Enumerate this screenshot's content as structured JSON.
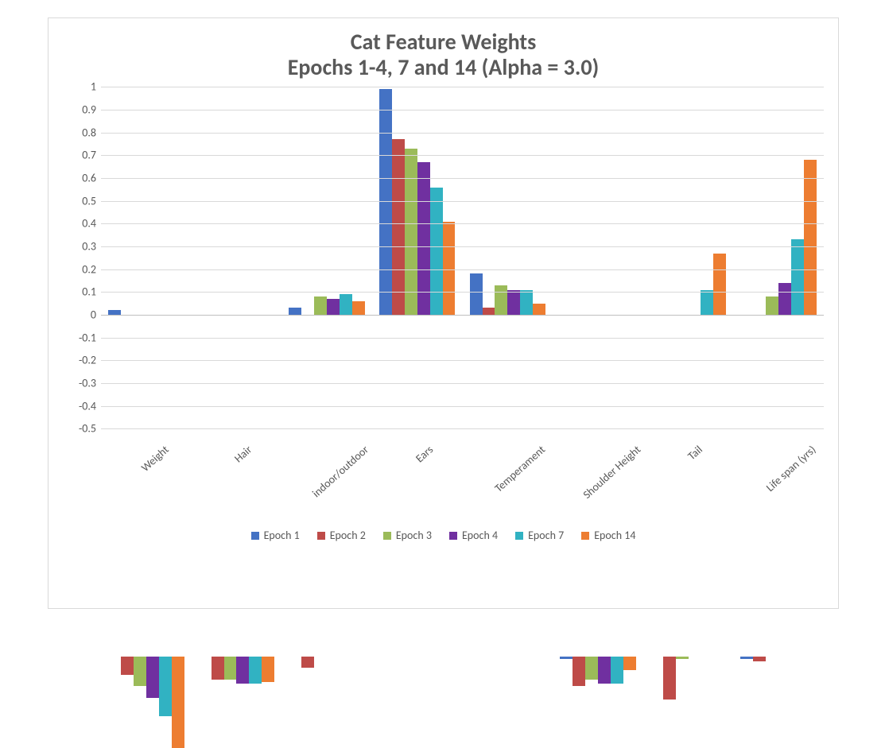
{
  "chart": {
    "type": "bar",
    "title_line1": "Cat Feature Weights",
    "title_line2": "Epochs 1-4, 7 and 14 (Alpha = 3.0)",
    "title_fontsize": 28,
    "title_color": "#595959",
    "background_color": "#ffffff",
    "border_color": "#d9d9d9",
    "grid_color": "#d9d9d9",
    "axis_color": "#bfbfbf",
    "tick_font_color": "#595959",
    "tick_fontsize": 14,
    "legend_fontsize": 14,
    "ylim": [
      -0.5,
      1.0
    ],
    "ytick_step": 0.1,
    "yticks": [
      "1",
      "0.9",
      "0.8",
      "0.7",
      "0.6",
      "0.5",
      "0.4",
      "0.3",
      "0.2",
      "0.1",
      "0",
      "-0.1",
      "-0.2",
      "-0.3",
      "-0.4",
      "-0.5"
    ],
    "categories": [
      "Weight",
      "Hair",
      "indoor/outdoor",
      "Ears",
      "Temperament",
      "Shoulder Height",
      "Tail",
      "Life span (yrs)"
    ],
    "series": [
      {
        "name": "Epoch 1",
        "color": "#4472c4"
      },
      {
        "name": "Epoch 2",
        "color": "#be4b48"
      },
      {
        "name": "Epoch 3",
        "color": "#9bbb59"
      },
      {
        "name": "Epoch 4",
        "color": "#7030a0"
      },
      {
        "name": "Epoch 7",
        "color": "#31b2c2"
      },
      {
        "name": "Epoch 14",
        "color": "#ed7d31"
      }
    ],
    "values": {
      "Weight": [
        0.02,
        -0.08,
        -0.13,
        -0.18,
        -0.26,
        -0.4
      ],
      "Hair": [
        0.0,
        -0.1,
        -0.1,
        -0.12,
        -0.12,
        -0.11
      ],
      "indoor/outdoor": [
        0.03,
        -0.05,
        0.08,
        0.07,
        0.09,
        0.06
      ],
      "Ears": [
        0.99,
        0.77,
        0.73,
        0.67,
        0.56,
        0.41
      ],
      "Temperament": [
        0.18,
        0.03,
        0.13,
        0.11,
        0.11,
        0.05
      ],
      "Shoulder Height": [
        -0.01,
        -0.13,
        -0.1,
        -0.12,
        -0.12,
        -0.06
      ],
      "Tail": [
        0.0,
        -0.19,
        -0.01,
        0.0,
        0.11,
        0.27
      ],
      "Life span (yrs)": [
        -0.01,
        -0.02,
        0.08,
        0.14,
        0.33,
        0.68
      ]
    },
    "bar_group_padding_pct": 8,
    "xlabel_rotation_deg": -42
  }
}
